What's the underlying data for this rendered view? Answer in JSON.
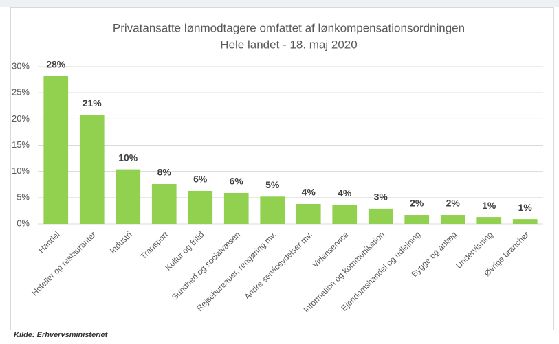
{
  "chart_data": {
    "type": "bar",
    "title": "Privatansatte lønmodtagere omfattet af lønkompensationsordningen",
    "subtitle": "Hele landet - 18. maj 2020",
    "categories": [
      "Handel",
      "Hoteller og restauranter",
      "Industri",
      "Transport",
      "Kultur og fritid",
      "Sundhed og socialvæsen",
      "Rejsebureauer, rengøring mv.",
      "Andre serviceydelser mv.",
      "Videnservice",
      "Information og kommunikation",
      "Ejendomshandel og udlejning",
      "Bygge og anlæg",
      "Undervisning",
      "Øvrige brancher"
    ],
    "values": [
      28.2,
      20.8,
      10.4,
      7.6,
      6.3,
      5.9,
      5.2,
      3.8,
      3.6,
      2.9,
      1.7,
      1.7,
      1.3,
      0.9
    ],
    "value_labels": [
      "28%",
      "21%",
      "10%",
      "8%",
      "6%",
      "6%",
      "5%",
      "4%",
      "4%",
      "3%",
      "2%",
      "2%",
      "1%",
      "1%"
    ],
    "color": "#92d050",
    "ylim": [
      0,
      30
    ],
    "yticks": [
      {
        "value": 0,
        "label": "0%"
      },
      {
        "value": 5,
        "label": "5%"
      },
      {
        "value": 10,
        "label": "10%"
      },
      {
        "value": 15,
        "label": "15%"
      },
      {
        "value": 20,
        "label": "20%"
      },
      {
        "value": 25,
        "label": "25%"
      },
      {
        "value": 30,
        "label": "30%"
      }
    ],
    "grid": true,
    "source": "Kilde: Erhvervsministeriet"
  }
}
